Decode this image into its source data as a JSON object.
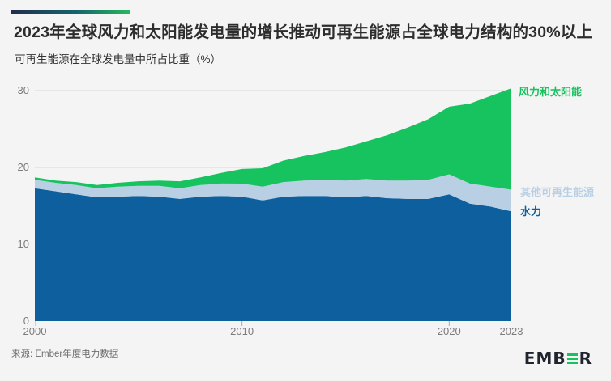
{
  "header": {
    "title": "2023年全球风力和太阳能发电量的增长推动可再生能源占全球电力结构的30%以上",
    "subtitle": "可再生能源在全球发电量中所占比重（%）"
  },
  "chart_data": {
    "type": "area",
    "stacked": true,
    "title": "可再生能源在全球发电量中所占比重（%）",
    "x": [
      2000,
      2001,
      2002,
      2003,
      2004,
      2005,
      2006,
      2007,
      2008,
      2009,
      2010,
      2011,
      2012,
      2013,
      2014,
      2015,
      2016,
      2017,
      2018,
      2019,
      2020,
      2021,
      2022,
      2023
    ],
    "series": [
      {
        "name": "水力",
        "color": "#0d5f9d",
        "values": [
          17.3,
          16.9,
          16.5,
          16.1,
          16.2,
          16.3,
          16.2,
          15.9,
          16.2,
          16.3,
          16.2,
          15.7,
          16.2,
          16.3,
          16.3,
          16.1,
          16.3,
          16.0,
          15.9,
          15.9,
          16.5,
          15.3,
          14.9,
          14.3
        ]
      },
      {
        "name": "其他可再生能源",
        "color": "#b9cfe4",
        "values": [
          1.1,
          1.1,
          1.2,
          1.2,
          1.3,
          1.3,
          1.4,
          1.4,
          1.5,
          1.6,
          1.7,
          1.8,
          1.9,
          2.0,
          2.1,
          2.2,
          2.2,
          2.3,
          2.4,
          2.5,
          2.6,
          2.6,
          2.6,
          2.8
        ]
      },
      {
        "name": "风力和太阳能",
        "color": "#17c35f",
        "values": [
          0.3,
          0.3,
          0.4,
          0.4,
          0.5,
          0.6,
          0.7,
          0.9,
          1.0,
          1.4,
          1.9,
          2.4,
          2.8,
          3.2,
          3.6,
          4.3,
          4.9,
          5.9,
          6.9,
          7.9,
          8.8,
          10.4,
          11.8,
          13.2
        ]
      }
    ],
    "ylim": [
      0,
      30
    ],
    "yticks": [
      0,
      10,
      20,
      30
    ],
    "xticks": [
      2000,
      2010,
      2020,
      2023
    ],
    "grid": "horizontal",
    "gridline_color": "#d9d9d9",
    "tick_color": "#ababab",
    "legend_position": "right"
  },
  "footer": {
    "source": "来源: Ember年度电力数据",
    "logo_left": "EMB",
    "logo_right": "R",
    "logo_green": "#17c35f",
    "logo_dark": "#20242f"
  }
}
